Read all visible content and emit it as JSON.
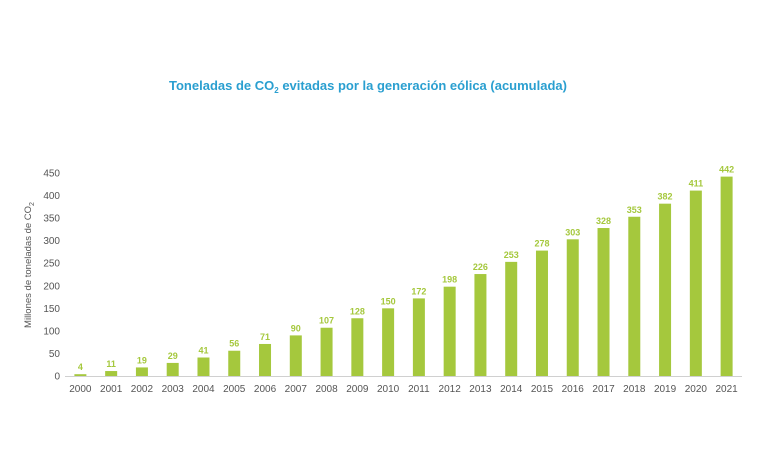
{
  "chart_data": {
    "type": "bar",
    "title": {
      "before": "Toneladas de CO",
      "subscript": "2",
      "after": " evitadas por la generación eólica (acumulada)"
    },
    "ylabel": {
      "main": "Millones de toneladas de CO",
      "subscript": "2"
    },
    "xlabel": "",
    "categories": [
      "2000",
      "2001",
      "2002",
      "2003",
      "2004",
      "2005",
      "2006",
      "2007",
      "2008",
      "2009",
      "2010",
      "2011",
      "2012",
      "2013",
      "2014",
      "2015",
      "2016",
      "2017",
      "2018",
      "2019",
      "2020",
      "2021"
    ],
    "values": [
      4,
      11,
      19,
      29,
      41,
      56,
      71,
      90,
      107,
      128,
      150,
      172,
      198,
      226,
      253,
      278,
      303,
      328,
      353,
      382,
      411,
      442
    ],
    "yticks": [
      0,
      50,
      100,
      150,
      200,
      250,
      300,
      350,
      400,
      450
    ],
    "ylim": [
      0,
      450
    ],
    "grid": false,
    "bar_color": "#a5c83d",
    "label_color": "#a5c83d"
  }
}
